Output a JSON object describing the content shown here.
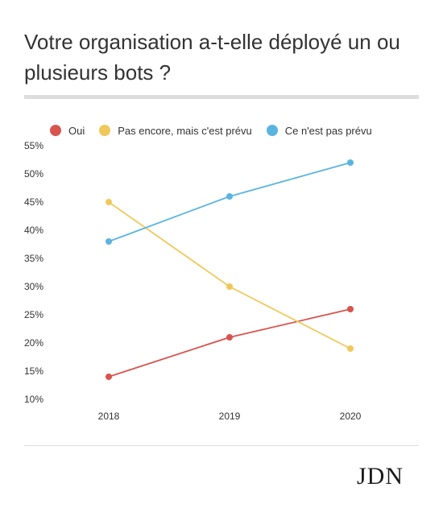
{
  "title": "Votre organisation a-t-elle déployé un ou plusieurs bots ?",
  "logo_text": "JDN",
  "chart_data": {
    "type": "line",
    "title": "Votre organisation a-t-elle déployé un ou plusieurs bots ?",
    "categories": [
      "2018",
      "2019",
      "2020"
    ],
    "series": [
      {
        "name": "Oui",
        "color": "#d9534f",
        "values": [
          14,
          21,
          26
        ]
      },
      {
        "name": "Pas encore, mais c'est prévu",
        "color": "#f0c85a",
        "values": [
          45,
          30,
          19
        ]
      },
      {
        "name": "Ce n'est pas prévu",
        "color": "#5ab4e0",
        "values": [
          38,
          46,
          52
        ]
      }
    ],
    "yticks": [
      "10%",
      "15%",
      "20%",
      "25%",
      "30%",
      "35%",
      "40%",
      "45%",
      "50%",
      "55%"
    ],
    "ylim": [
      10,
      55
    ],
    "grid": false,
    "legend": "top-left"
  }
}
